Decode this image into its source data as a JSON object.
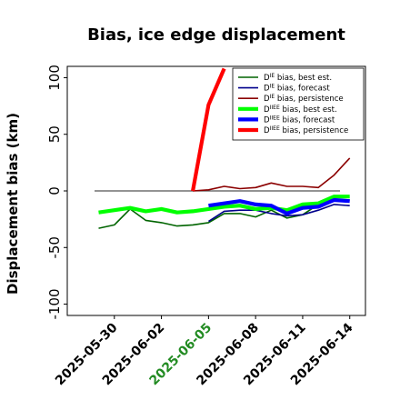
{
  "chart_data": {
    "type": "line",
    "title": "Bias, ice edge displacement",
    "ylabel": "Displacement bias (km)",
    "xlabel": "",
    "ylim": [
      -110,
      110
    ],
    "yticks": [
      -100,
      -50,
      0,
      50,
      100
    ],
    "x_range": [
      "2025-05-27",
      "2025-06-15"
    ],
    "xticks": [
      "2025-05-30",
      "2025-06-02",
      "2025-06-05",
      "2025-06-08",
      "2025-06-11",
      "2025-06-14"
    ],
    "highlight_xtick": "2025-06-05",
    "highlight_color": "#228b22",
    "zero_line": true,
    "grid": false,
    "legend_position": "top-right",
    "series": [
      {
        "name": "D^IE bias, best est.",
        "legend_main": "D",
        "legend_sup": "IE",
        "legend_rest": " bias, best est.",
        "color": "#006400",
        "width": 1.6,
        "legend_bold": false,
        "x": [
          "2025-05-29",
          "2025-05-30",
          "2025-05-31",
          "2025-06-01",
          "2025-06-02",
          "2025-06-03",
          "2025-06-04",
          "2025-06-05",
          "2025-06-06",
          "2025-06-07",
          "2025-06-08",
          "2025-06-09",
          "2025-06-10",
          "2025-06-11",
          "2025-06-12",
          "2025-06-13",
          "2025-06-14"
        ],
        "y": [
          -33,
          -30,
          -16,
          -26,
          -28,
          -31,
          -30,
          -28,
          -20,
          -20,
          -23,
          -17,
          -24,
          -21,
          -12,
          -8,
          -8
        ]
      },
      {
        "name": "D^IE bias, forecast",
        "legend_main": "D",
        "legend_sup": "IE",
        "legend_rest": " bias, forecast",
        "color": "#00008b",
        "width": 1.6,
        "legend_bold": false,
        "x": [
          "2025-06-05",
          "2025-06-06",
          "2025-06-07",
          "2025-06-08",
          "2025-06-09",
          "2025-06-10",
          "2025-06-11",
          "2025-06-12",
          "2025-06-13",
          "2025-06-14"
        ],
        "y": [
          -27,
          -18,
          -17,
          -17,
          -20,
          -22,
          -21,
          -17,
          -12,
          -13
        ]
      },
      {
        "name": "D^IE bias, persistence",
        "legend_main": "D",
        "legend_sup": "IE",
        "legend_rest": " bias, persistence",
        "color": "#8b0000",
        "width": 1.6,
        "legend_bold": false,
        "x": [
          "2025-06-04",
          "2025-06-05",
          "2025-06-06",
          "2025-06-07",
          "2025-06-08",
          "2025-06-09",
          "2025-06-10",
          "2025-06-11",
          "2025-06-12",
          "2025-06-13",
          "2025-06-14"
        ],
        "y": [
          0,
          1,
          4,
          2,
          3,
          7,
          4,
          4,
          3,
          14,
          29
        ]
      },
      {
        "name": "D^IIEE bias, best est.",
        "legend_main": "D",
        "legend_sup": "IIEE",
        "legend_rest": " bias, best est.",
        "color": "#00ff00",
        "width": 4.2,
        "legend_bold": true,
        "x": [
          "2025-05-29",
          "2025-05-30",
          "2025-05-31",
          "2025-06-01",
          "2025-06-02",
          "2025-06-03",
          "2025-06-04",
          "2025-06-05",
          "2025-06-06",
          "2025-06-07",
          "2025-06-08",
          "2025-06-09",
          "2025-06-10",
          "2025-06-11",
          "2025-06-12",
          "2025-06-13",
          "2025-06-14"
        ],
        "y": [
          -19,
          -17,
          -15,
          -18,
          -16,
          -19,
          -18,
          -16,
          -14,
          -13,
          -16,
          -15,
          -17,
          -12,
          -11,
          -5,
          -5
        ]
      },
      {
        "name": "D^IIEE bias, forecast",
        "legend_main": "D",
        "legend_sup": "IIEE",
        "legend_rest": " bias, forecast",
        "color": "#0000ff",
        "width": 4.2,
        "legend_bold": true,
        "x": [
          "2025-06-05",
          "2025-06-06",
          "2025-06-07",
          "2025-06-08",
          "2025-06-09",
          "2025-06-10",
          "2025-06-11",
          "2025-06-12",
          "2025-06-13",
          "2025-06-14"
        ],
        "y": [
          -13,
          -11,
          -9,
          -12,
          -13,
          -20,
          -15,
          -14,
          -8,
          -9
        ]
      },
      {
        "name": "D^IIEE bias, persistence",
        "legend_main": "D",
        "legend_sup": "IIEE",
        "legend_rest": " bias, persistence",
        "color": "#ff0000",
        "width": 4.2,
        "legend_bold": true,
        "x": [
          "2025-06-04",
          "2025-06-05",
          "2025-06-06"
        ],
        "y": [
          0,
          76,
          108
        ]
      }
    ]
  }
}
